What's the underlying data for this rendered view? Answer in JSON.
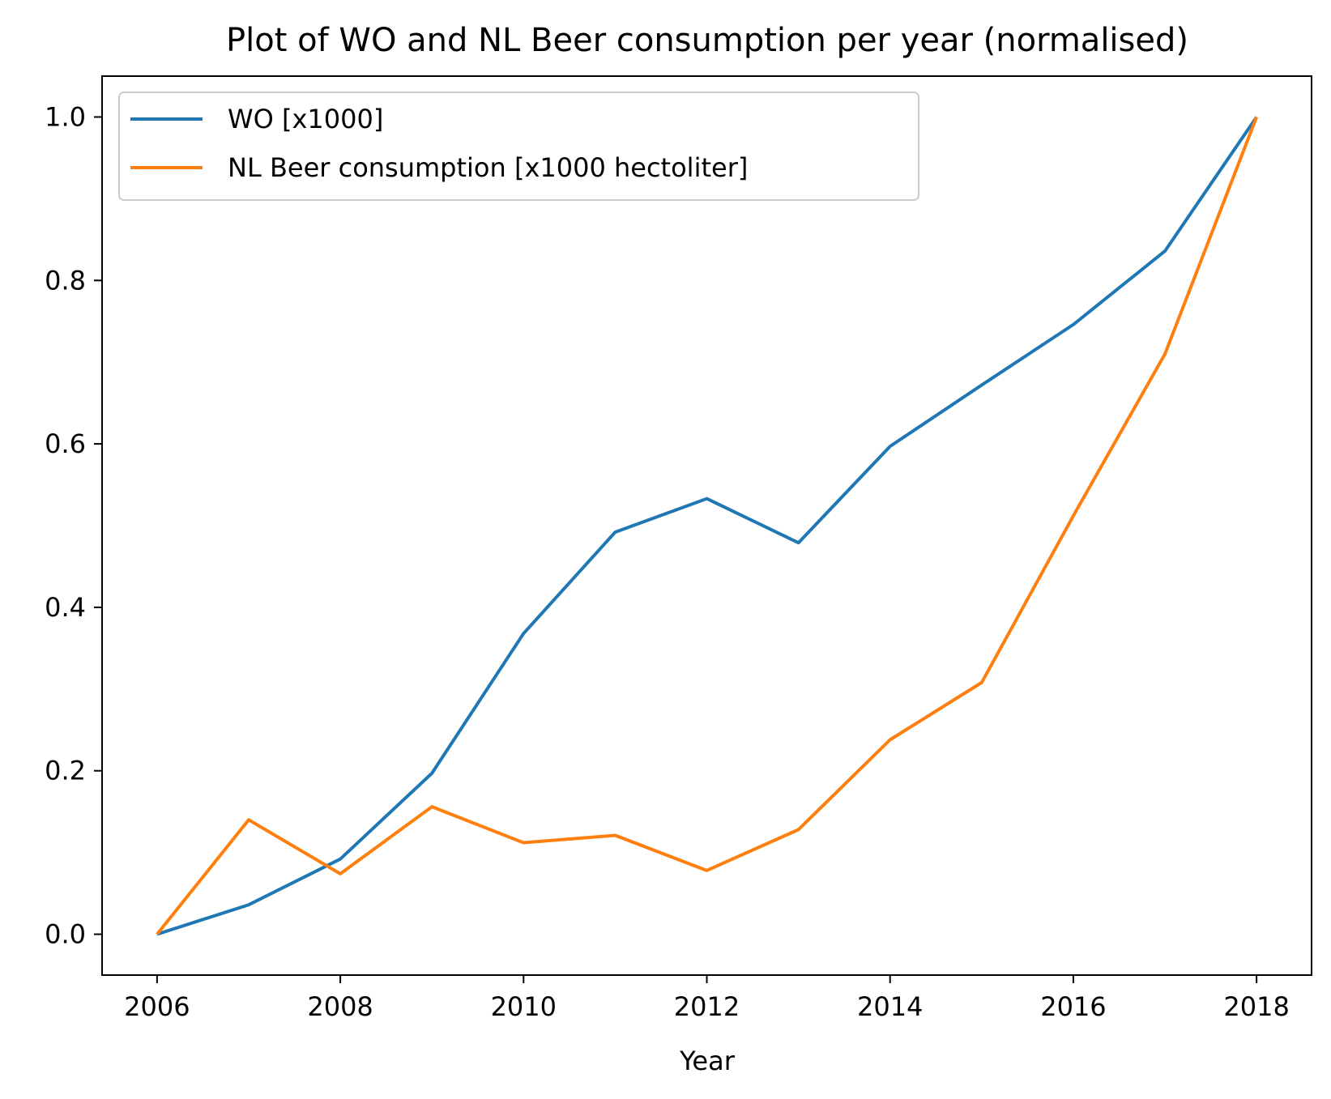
{
  "chart_data": {
    "type": "line",
    "title": "Plot of WO and NL Beer consumption per year (normalised)",
    "xlabel": "Year",
    "ylabel": "",
    "x": [
      2006,
      2007,
      2008,
      2009,
      2010,
      2011,
      2012,
      2013,
      2014,
      2015,
      2016,
      2017,
      2018
    ],
    "xlim": [
      2005.4,
      2018.6
    ],
    "ylim": [
      -0.05,
      1.05
    ],
    "xticks": [
      "2006",
      "2008",
      "2010",
      "2012",
      "2014",
      "2016",
      "2018"
    ],
    "yticks": [
      "0.0",
      "0.2",
      "0.4",
      "0.6",
      "0.8",
      "1.0"
    ],
    "grid": false,
    "legend_position": "top-left",
    "series": [
      {
        "name": "WO [x1000]",
        "color": "#1f77b4",
        "values": [
          0.0,
          0.036,
          0.092,
          0.197,
          0.368,
          0.492,
          0.533,
          0.479,
          0.597,
          0.672,
          0.746,
          0.836,
          1.0
        ]
      },
      {
        "name": "NL Beer consumption [x1000 hectoliter]",
        "color": "#ff7f0e",
        "values": [
          0.0,
          0.14,
          0.074,
          0.156,
          0.112,
          0.121,
          0.078,
          0.128,
          0.238,
          0.308,
          0.512,
          0.71,
          1.0
        ]
      }
    ]
  }
}
